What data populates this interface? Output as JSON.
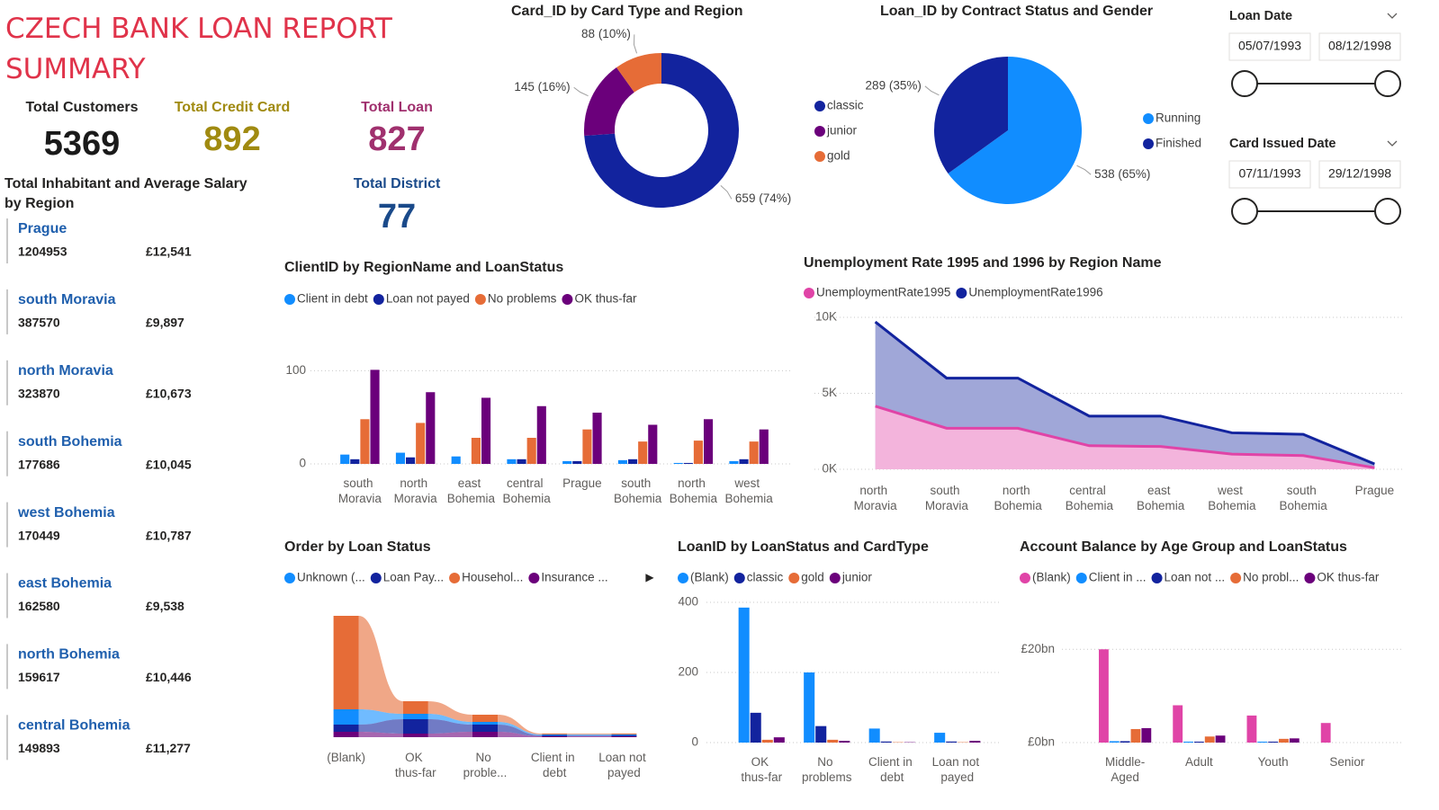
{
  "report_title": "CZECH BANK LOAN REPORT SUMMARY",
  "kpis": [
    {
      "label": "Total Customers",
      "value": 5369
    },
    {
      "label": "Total Credit Card",
      "value": 892
    },
    {
      "label": "Total Loan",
      "value": 827
    },
    {
      "label": "Total District",
      "value": 77
    }
  ],
  "region_table": {
    "title": "Total Inhabitant and Average Salary by Region",
    "rows": [
      [
        "Prague",
        1204953,
        "£12,541"
      ],
      [
        "south Moravia",
        387570,
        "£9,897"
      ],
      [
        "north Moravia",
        323870,
        "£10,673"
      ],
      [
        "south Bohemia",
        177686,
        "£10,045"
      ],
      [
        "west Bohemia",
        170449,
        "£10,787"
      ],
      [
        "east Bohemia",
        162580,
        "£9,538"
      ],
      [
        "north Bohemia",
        159617,
        "£10,446"
      ],
      [
        "central Bohemia",
        149893,
        "£11,277"
      ]
    ]
  },
  "slicers": [
    {
      "title": "Loan Date",
      "start": "05/07/1993",
      "end": "08/12/1998"
    },
    {
      "title": "Card Issued Date",
      "start": "07/11/1993",
      "end": "29/12/1998"
    }
  ],
  "chart_data": [
    {
      "type": "donut",
      "title": "Card_ID by Card Type and Region",
      "categories": [
        "classic",
        "junior",
        "gold"
      ],
      "values": [
        659,
        145,
        88
      ],
      "value_labels": [
        "659 (74%)",
        "145 (16%)",
        "88 (10%)"
      ],
      "colors": [
        "#12239e",
        "#6b007b",
        "#e66c37"
      ]
    },
    {
      "type": "pie",
      "title": "Loan_ID by Contract Status and Gender",
      "categories": [
        "Running",
        "Finished"
      ],
      "values": [
        538,
        289
      ],
      "value_labels": [
        "538 (65%)",
        "289 (35%)"
      ],
      "colors": [
        "#118dff",
        "#12239e"
      ]
    },
    {
      "type": "bar",
      "title": "ClientID by RegionName and LoanStatus",
      "categories": [
        "south Moravia",
        "north Moravia",
        "east Bohemia",
        "central Bohemia",
        "Prague",
        "south Bohemia",
        "north Bohemia",
        "west Bohemia"
      ],
      "series": [
        {
          "name": "Client in debt",
          "color": "#118dff",
          "values": [
            10,
            12,
            8,
            5,
            3,
            4,
            1,
            3
          ]
        },
        {
          "name": "Loan not payed",
          "color": "#12239e",
          "values": [
            5,
            7,
            0,
            5,
            3,
            5,
            1,
            5
          ]
        },
        {
          "name": "No problems",
          "color": "#e66c37",
          "values": [
            48,
            44,
            28,
            28,
            37,
            24,
            25,
            24
          ]
        },
        {
          "name": "OK thus-far",
          "color": "#6b007b",
          "values": [
            101,
            77,
            71,
            62,
            55,
            42,
            48,
            37
          ]
        }
      ],
      "ylim": [
        0,
        112
      ],
      "yticks": [
        0,
        100
      ],
      "grid": true
    },
    {
      "type": "area",
      "title": "Unemployment Rate 1995 and 1996 by Region Name",
      "categories": [
        "north Moravia",
        "south Moravia",
        "north Bohemia",
        "central Bohemia",
        "east Bohemia",
        "west Bohemia",
        "south Bohemia",
        "Prague"
      ],
      "series": [
        {
          "name": "UnemploymentRate1995",
          "color": "#e044a7",
          "values": [
            4150,
            2700,
            2700,
            1550,
            1500,
            1000,
            900,
            100
          ]
        },
        {
          "name": "UnemploymentRate1996",
          "color": "#12239e",
          "values": [
            9700,
            6000,
            6000,
            3500,
            3500,
            2400,
            2300,
            350
          ]
        }
      ],
      "ylim": [
        0,
        10000
      ],
      "yticks": [
        {
          "value": 0,
          "label": "0K"
        },
        {
          "value": 5000,
          "label": "5K"
        },
        {
          "value": 10000,
          "label": "10K"
        }
      ],
      "grid": true
    },
    {
      "type": "ribbon",
      "title": "Order by Loan Status",
      "categories": [
        "(Blank)",
        "OK thus-far",
        "No proble...",
        "Client in debt",
        "Loan not payed"
      ],
      "series": [
        {
          "name": "Unknown (...",
          "color": "#118dff",
          "values": [
            17,
            6,
            3,
            1,
            1
          ]
        },
        {
          "name": "Loan Pay...",
          "color": "#12239e",
          "values": [
            8,
            16,
            8,
            1,
            1
          ]
        },
        {
          "name": "Househol...",
          "color": "#e66c37",
          "values": [
            104,
            14,
            8,
            1,
            1
          ]
        },
        {
          "name": "Insurance ...",
          "color": "#6b007b",
          "values": [
            6,
            4,
            6,
            1,
            1
          ]
        }
      ]
    },
    {
      "type": "bar",
      "title": "LoanID by LoanStatus and CardType",
      "categories": [
        "OK thus-far",
        "No problems",
        "Client in debt",
        "Loan not payed"
      ],
      "series": [
        {
          "name": "(Blank)",
          "color": "#118dff",
          "values": [
            385,
            200,
            40,
            28
          ]
        },
        {
          "name": "classic",
          "color": "#12239e",
          "values": [
            85,
            47,
            3,
            3
          ]
        },
        {
          "name": "gold",
          "color": "#e66c37",
          "values": [
            8,
            8,
            1,
            1
          ]
        },
        {
          "name": "junior",
          "color": "#6b007b",
          "values": [
            15,
            5,
            1,
            5
          ]
        }
      ],
      "ylim": [
        0,
        400
      ],
      "yticks": [
        0,
        200,
        400
      ],
      "grid": true
    },
    {
      "type": "bar",
      "title": "Account Balance by Age Group and LoanStatus",
      "categories": [
        "Middle-Aged",
        "Adult",
        "Youth",
        "Senior"
      ],
      "series": [
        {
          "name": "(Blank)",
          "color": "#e044a7",
          "values": [
            20000000000,
            8000000000,
            5800000000,
            4200000000
          ]
        },
        {
          "name": "Client in ...",
          "color": "#118dff",
          "values": [
            300000000,
            200000000,
            200000000,
            0
          ]
        },
        {
          "name": "Loan not ...",
          "color": "#12239e",
          "values": [
            300000000,
            200000000,
            200000000,
            0
          ]
        },
        {
          "name": "No probl...",
          "color": "#e66c37",
          "values": [
            2900000000,
            1300000000,
            800000000,
            0
          ]
        },
        {
          "name": "OK thus-far",
          "color": "#6b007b",
          "values": [
            3100000000,
            1500000000,
            900000000,
            0
          ]
        }
      ],
      "ylim": [
        0,
        32000000000
      ],
      "yticks": [
        {
          "value": 0,
          "label": "£0bn"
        },
        {
          "value": 20000000000,
          "label": "£20bn"
        }
      ],
      "grid": true
    }
  ]
}
